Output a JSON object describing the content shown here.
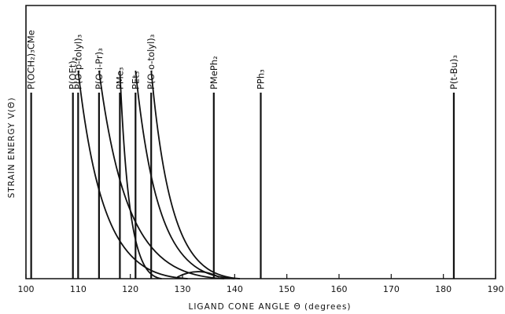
{
  "chart_data": {
    "type": "line",
    "title": "",
    "xlabel": "LIGAND CONE ANGLE Θ (degrees)",
    "ylabel": "STRAIN ENERGY V(Θ)",
    "xlim": [
      100,
      190
    ],
    "ylim": [
      0,
      1
    ],
    "xticks": [
      100,
      110,
      120,
      130,
      140,
      150,
      160,
      170,
      180,
      190
    ],
    "grid": false,
    "ligands": [
      {
        "label": "P(OCH₂)₃CMe",
        "cone_angle": 101
      },
      {
        "label": "P(OEt)₃",
        "cone_angle": 109
      },
      {
        "label": "P(O-p-tolyl)₃",
        "cone_angle": 110
      },
      {
        "label": "P(O-i-Pr)₃",
        "cone_angle": 114
      },
      {
        "label": "PMe₃",
        "cone_angle": 118
      },
      {
        "label": "PEt₃",
        "cone_angle": 121
      },
      {
        "label": "P(O-o-tolyl)₃",
        "cone_angle": 124
      },
      {
        "label": "PMePh₂",
        "cone_angle": 136
      },
      {
        "label": "PPh₃",
        "cone_angle": 145
      },
      {
        "label": "P(t-Bu)₃",
        "cone_angle": 182
      }
    ],
    "curves": [
      {
        "start": 110,
        "end": 131,
        "bump": 0.0
      },
      {
        "start": 114,
        "end": 138,
        "bump": 0.0
      },
      {
        "start": 118,
        "end": 126,
        "bump": 0.0
      },
      {
        "start": 121,
        "end": 140,
        "bump": 0.0
      },
      {
        "start": 124,
        "end": 141,
        "bump": 0.06
      }
    ]
  }
}
